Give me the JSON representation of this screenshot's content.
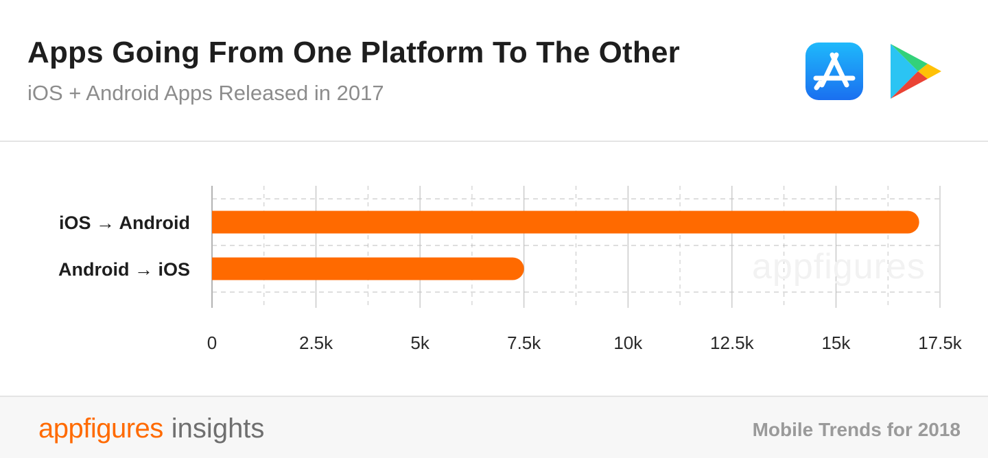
{
  "header": {
    "title": "Apps Going From One Platform To The Other",
    "subtitle": "iOS + Android Apps Released in 2017",
    "icons": [
      "app-store-icon",
      "google-play-icon"
    ]
  },
  "chart_data": {
    "type": "bar",
    "orientation": "horizontal",
    "categories": [
      "iOS → Android",
      "Android → iOS"
    ],
    "values": [
      17000,
      7500
    ],
    "xlim": [
      0,
      17500
    ],
    "xticks": [
      0,
      2500,
      5000,
      7500,
      10000,
      12500,
      15000,
      17500
    ],
    "xtick_labels": [
      "0",
      "2.5k",
      "5k",
      "7.5k",
      "10k",
      "12.5k",
      "15k",
      "17.5k"
    ],
    "title": "Apps Going From One Platform To The Other",
    "xlabel": "",
    "ylabel": "",
    "grid": true,
    "legend": "none",
    "bar_color": "#ff6a00",
    "watermark": "appfigures"
  },
  "footer": {
    "brand_name": "appfigures",
    "brand_suffix": "insights",
    "tagline": "Mobile Trends for 2018"
  },
  "colors": {
    "accent": "#ff6a00",
    "title": "#1e1e1e",
    "subtitle": "#8c8c8c",
    "footer_bg": "#f7f7f7"
  }
}
